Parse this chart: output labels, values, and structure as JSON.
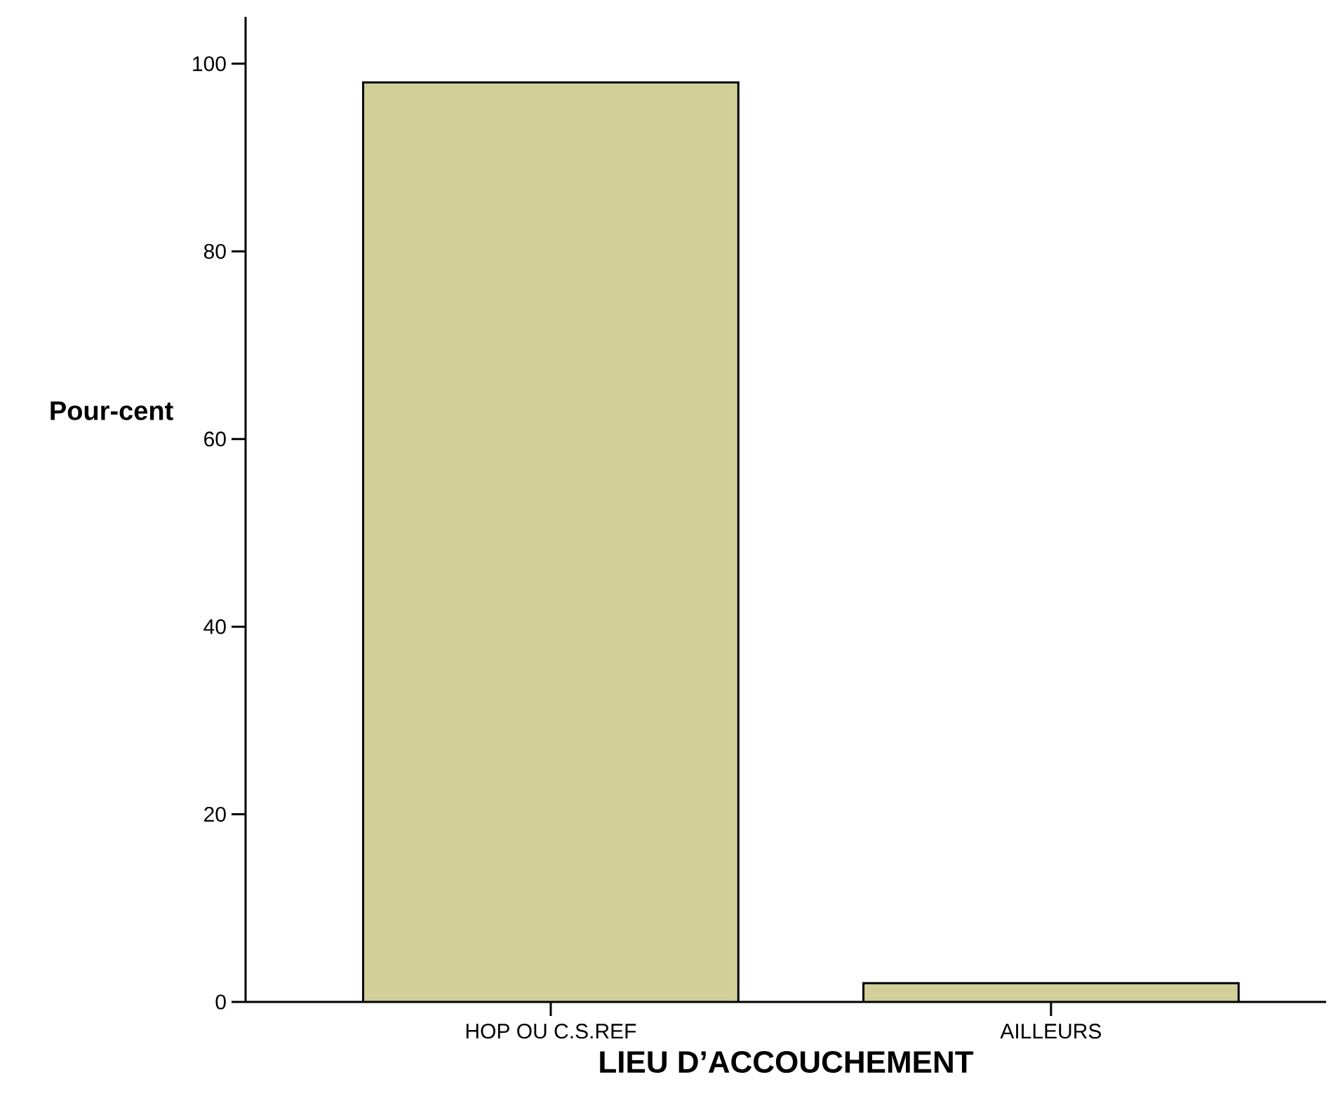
{
  "chart_data": {
    "type": "bar",
    "xlabel": "LIEU D’ACCOUCHEMENT",
    "ylabel": "Pour-cent",
    "categories": [
      "HOP OU C.S.REF",
      "AILLEURS"
    ],
    "values": [
      98.0,
      2.0
    ],
    "color": "#d3cf99",
    "ylim": [
      0,
      105
    ],
    "yticks": [
      0,
      20,
      40,
      60,
      80,
      100
    ],
    "grid": false
  }
}
